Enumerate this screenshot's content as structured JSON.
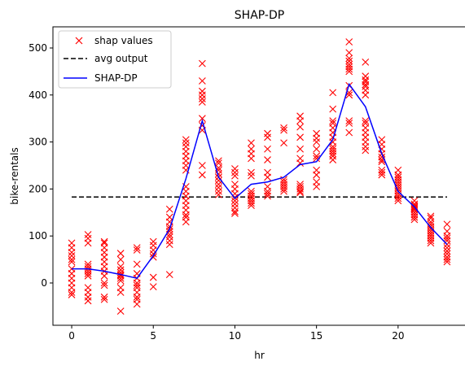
{
  "chart_data": {
    "type": "scatter",
    "title": "SHAP-DP",
    "xlabel": "hr",
    "ylabel": "bike-rentals",
    "xlim": [
      -1.15,
      24.15
    ],
    "ylim": [
      -90,
      545
    ],
    "xticks": [
      0,
      5,
      10,
      15,
      20
    ],
    "yticks": [
      0,
      100,
      200,
      300,
      400,
      500
    ],
    "grid": false,
    "legend_position": "top-left",
    "legend": [
      "shap values",
      "avg output",
      "SHAP-DP"
    ],
    "avg_output": 183,
    "shap_values": [
      {
        "x": 0,
        "y": [
          85,
          75,
          65,
          58,
          50,
          45,
          30,
          20,
          10,
          0,
          -10,
          -20,
          -25
        ]
      },
      {
        "x": 1,
        "y": [
          103,
          95,
          85,
          40,
          35,
          30,
          25,
          20,
          15,
          -10,
          -20,
          -30,
          -38
        ]
      },
      {
        "x": 2,
        "y": [
          88,
          85,
          75,
          65,
          55,
          45,
          35,
          25,
          15,
          0,
          -5,
          -30,
          -35
        ]
      },
      {
        "x": 3,
        "y": [
          63,
          50,
          35,
          28,
          22,
          18,
          15,
          10,
          5,
          -10,
          -20,
          -60
        ]
      },
      {
        "x": 4,
        "y": [
          75,
          70,
          40,
          20,
          10,
          0,
          -5,
          -10,
          -20,
          -30,
          -35,
          -45
        ]
      },
      {
        "x": 5,
        "y": [
          88,
          80,
          70,
          62,
          55,
          12,
          -8
        ]
      },
      {
        "x": 6,
        "y": [
          157,
          140,
          130,
          120,
          115,
          110,
          103,
          98,
          90,
          82,
          18
        ]
      },
      {
        "x": 7,
        "y": [
          305,
          298,
          290,
          280,
          270,
          260,
          250,
          240,
          205,
          195,
          185,
          175,
          165,
          155,
          145,
          140,
          130
        ]
      },
      {
        "x": 8,
        "y": [
          467,
          430,
          408,
          400,
          392,
          385,
          350,
          335,
          325,
          250,
          230
        ]
      },
      {
        "x": 9,
        "y": [
          260,
          255,
          245,
          240,
          232,
          225,
          218,
          210,
          203,
          195,
          188
        ]
      },
      {
        "x": 10,
        "y": [
          243,
          235,
          228,
          210,
          200,
          190,
          182,
          175,
          168,
          160,
          152,
          148
        ]
      },
      {
        "x": 11,
        "y": [
          298,
          285,
          275,
          265,
          235,
          228,
          195,
          190,
          185,
          180,
          175,
          170,
          165
        ]
      },
      {
        "x": 12,
        "y": [
          318,
          310,
          285,
          262,
          235,
          225,
          205,
          195,
          190,
          185
        ]
      },
      {
        "x": 13,
        "y": [
          330,
          325,
          298,
          220,
          215,
          210,
          205,
          200,
          195
        ]
      },
      {
        "x": 14,
        "y": [
          355,
          345,
          332,
          310,
          285,
          265,
          255,
          210,
          205,
          200,
          195,
          192
        ]
      },
      {
        "x": 15,
        "y": [
          318,
          308,
          300,
          285,
          270,
          265,
          240,
          230,
          215,
          205
        ]
      },
      {
        "x": 16,
        "y": [
          405,
          370,
          345,
          340,
          330,
          320,
          310,
          300,
          290,
          285,
          280,
          275,
          270,
          262
        ]
      },
      {
        "x": 17,
        "y": [
          513,
          490,
          478,
          472,
          465,
          460,
          455,
          450,
          420,
          405,
          400,
          345,
          340,
          320
        ]
      },
      {
        "x": 18,
        "y": [
          470,
          440,
          432,
          428,
          422,
          418,
          410,
          400,
          345,
          340,
          330,
          320,
          310,
          300,
          290,
          282
        ]
      },
      {
        "x": 19,
        "y": [
          305,
          295,
          285,
          275,
          268,
          262,
          258,
          240,
          235,
          230
        ]
      },
      {
        "x": 20,
        "y": [
          240,
          230,
          225,
          220,
          215,
          210,
          205,
          200,
          195,
          190,
          185,
          180,
          175
        ]
      },
      {
        "x": 21,
        "y": [
          175,
          168,
          165,
          162,
          160,
          158,
          155,
          150,
          145,
          140,
          135
        ]
      },
      {
        "x": 22,
        "y": [
          142,
          138,
          130,
          125,
          120,
          115,
          110,
          105,
          100,
          95,
          90,
          85
        ]
      },
      {
        "x": 23,
        "y": [
          125,
          110,
          100,
          95,
          90,
          82,
          75,
          68,
          62,
          55,
          50,
          45
        ]
      }
    ],
    "shap_dp_line": {
      "x": [
        0,
        1,
        2,
        3,
        4,
        5,
        6,
        7,
        8,
        9,
        10,
        11,
        12,
        13,
        14,
        15,
        16,
        17,
        18,
        19,
        20,
        21,
        22,
        23
      ],
      "y": [
        30,
        30,
        25,
        18,
        10,
        58,
        115,
        222,
        345,
        225,
        180,
        210,
        215,
        225,
        252,
        258,
        305,
        423,
        375,
        275,
        195,
        162,
        118,
        82
      ]
    },
    "colors": {
      "scatter": "#ff0000",
      "avg_line": "#000000",
      "shap_dp": "#0000ff"
    }
  }
}
